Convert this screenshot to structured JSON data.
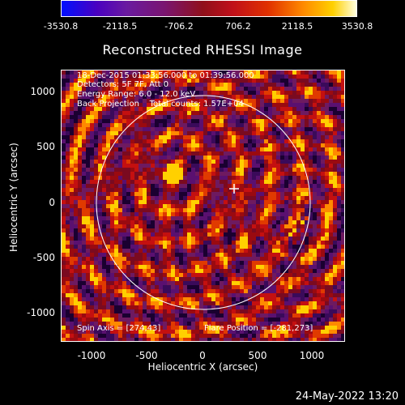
{
  "colorbar": {
    "labels": [
      "-3530.8",
      "-2118.5",
      "-706.2",
      "706.2",
      "2118.5",
      "3530.8"
    ]
  },
  "title": "Reconstructed RHESSI Image",
  "info": {
    "line1": "18-Dec-2015 01:33:56.000 to 01:39:56.000",
    "line2": "Detectors: 5F 7F, Att 0",
    "line3": "Energy Range: 6.0 - 12.0 keV",
    "line4": "Back Projection    Total counts: 1.57E+04"
  },
  "spin_axis": "Spin Axis = [274,43]",
  "flare_position": "Flare Position = [-281,273]",
  "axes": {
    "xlabel": "Heliocentric X (arcsec)",
    "ylabel": "Heliocentric Y (arcsec)",
    "xticks": [
      "-1000",
      "-500",
      "0",
      "500",
      "1000"
    ],
    "yticks": [
      "1000",
      "500",
      "0",
      "-500",
      "-1000"
    ]
  },
  "timestamp": "24-May-2022 13:20",
  "colors": {
    "background": "#000000",
    "limb": "#ffffff"
  }
}
